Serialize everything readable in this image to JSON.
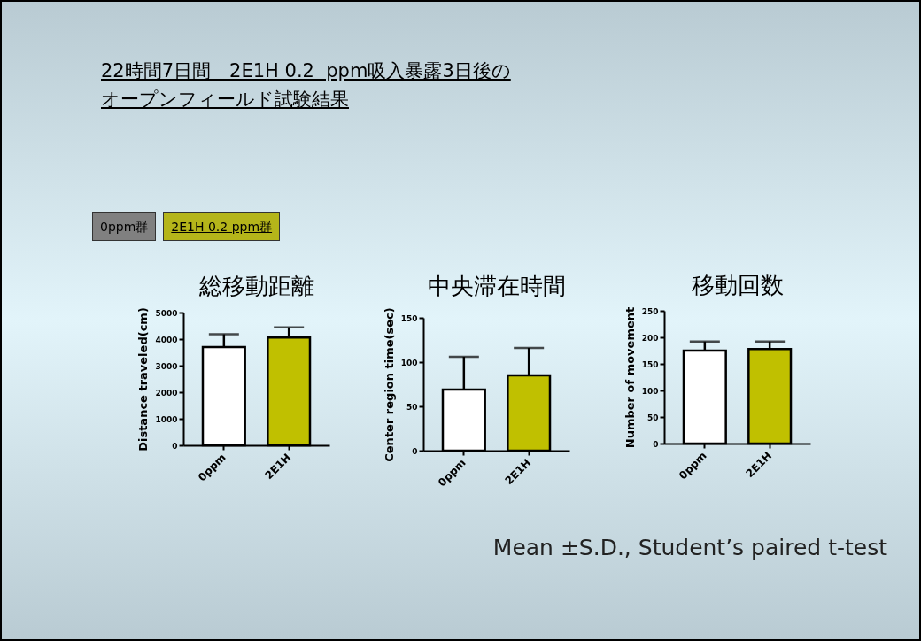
{
  "chart_data": [
    {
      "type": "other",
      "title": "22時間7日間　2E1H 0.2  ppm吸入暴露3日後のオープンフィールド試験結果",
      "annotations": [
        "0ppm群",
        "2E1H 0.2 ppm群",
        "Mean ±S.D., Student’s paired t-test"
      ]
    },
    {
      "type": "bar",
      "title": "総移動距離",
      "ylabel": "Distance traveled(cm)",
      "categories": [
        "0ppm",
        "2E1H"
      ],
      "values": [
        3700,
        4060
      ],
      "colors": [
        "#ffffff",
        "#c0c000"
      ],
      "errors": [
        [
          3700,
          4180
        ],
        [
          4060,
          4440
        ]
      ],
      "ylim": [
        0,
        5000
      ],
      "yticks": [
        0,
        1000,
        2000,
        3000,
        4000,
        5000
      ],
      "grid": false
    },
    {
      "type": "bar",
      "title": "中央滞在時間",
      "ylabel": "Center region time(sec)",
      "categories": [
        "0ppm",
        "2E1H"
      ],
      "values": [
        69,
        85
      ],
      "colors": [
        "#ffffff",
        "#c0c000"
      ],
      "errors": [
        [
          69,
          106
        ],
        [
          85,
          116
        ]
      ],
      "ylim": [
        0,
        150
      ],
      "yticks": [
        0,
        50,
        100,
        150
      ],
      "grid": false
    },
    {
      "type": "bar",
      "title": "移動回数",
      "ylabel": "Number of movement",
      "categories": [
        "0ppm",
        "2E1H"
      ],
      "values": [
        175,
        178
      ],
      "colors": [
        "#ffffff",
        "#c0c000"
      ],
      "errors": [
        [
          175,
          192
        ],
        [
          178,
          192
        ]
      ],
      "ylim": [
        0,
        250
      ],
      "yticks": [
        0,
        50,
        100,
        150,
        200,
        250
      ],
      "grid": false
    }
  ]
}
